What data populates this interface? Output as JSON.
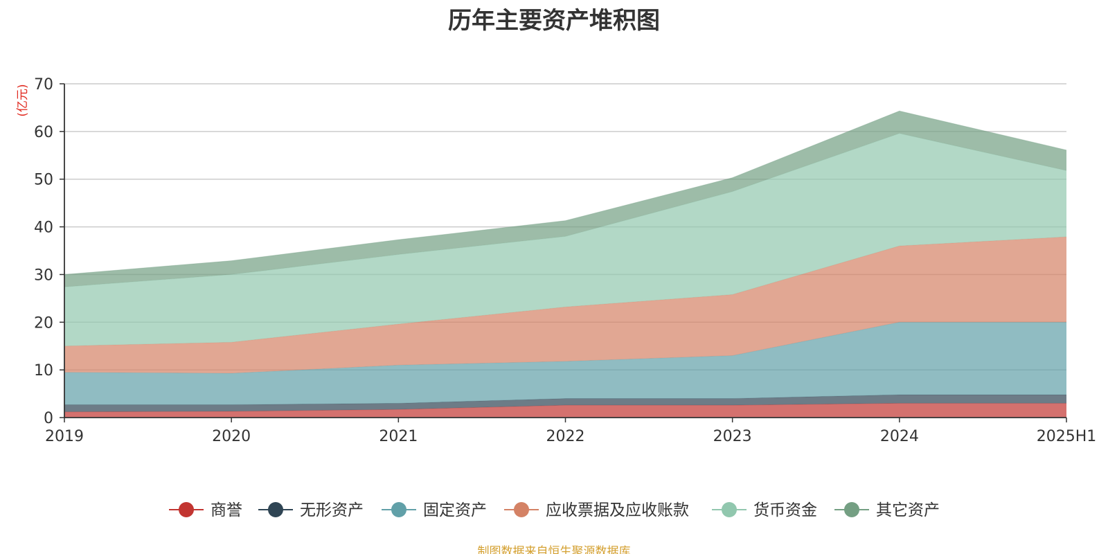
{
  "chart_data": {
    "type": "area",
    "stacked": true,
    "title": "历年主要资产堆积图",
    "ylabel": "(亿元)",
    "xlabel": "",
    "categories": [
      "2019",
      "2020",
      "2021",
      "2022",
      "2023",
      "2024",
      "2025H1"
    ],
    "ylim": [
      0,
      70
    ],
    "yticks": [
      0,
      10,
      20,
      30,
      40,
      50,
      60,
      70
    ],
    "grid": true,
    "legend_position": "bottom",
    "series": [
      {
        "name": "商誉",
        "color": "#c23531",
        "values": [
          1.2,
          1.3,
          1.7,
          2.6,
          2.6,
          3.0,
          3.0
        ]
      },
      {
        "name": "无形资产",
        "color": "#2f4554",
        "values": [
          1.5,
          1.4,
          1.3,
          1.4,
          1.4,
          1.8,
          1.8
        ]
      },
      {
        "name": "固定资产",
        "color": "#61a0a8",
        "values": [
          6.8,
          6.6,
          8.0,
          7.8,
          9.0,
          15.2,
          15.2
        ]
      },
      {
        "name": "应收票据及应收账款",
        "color": "#d48265",
        "values": [
          5.5,
          6.5,
          8.6,
          11.4,
          12.8,
          16.0,
          17.9
        ]
      },
      {
        "name": "货币资金",
        "color": "#91c7ae",
        "values": [
          12.4,
          14.2,
          14.6,
          14.8,
          21.6,
          23.6,
          13.9
        ]
      },
      {
        "name": "其它资产",
        "color": "#749f83",
        "values": [
          2.6,
          2.9,
          3.1,
          3.3,
          2.9,
          4.7,
          4.3
        ]
      }
    ],
    "source": "制图数据来自恒生聚源数据库"
  }
}
